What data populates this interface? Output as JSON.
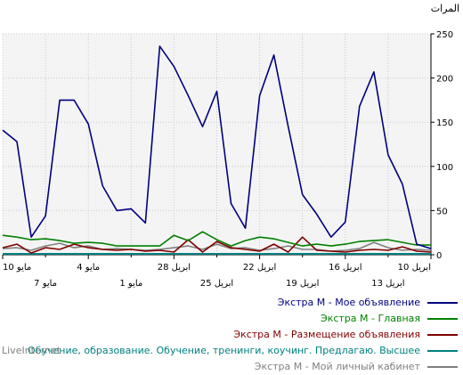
{
  "chart_data": {
    "type": "line",
    "ylabel": "المرات",
    "ylim": [
      0,
      250
    ],
    "yticks": [
      0,
      50,
      100,
      150,
      200,
      250
    ],
    "grid": true,
    "legend_position": "bottom-right",
    "x_tick_labels_row1": [
      "10 مايو",
      "4 مايو",
      "28 ابريل",
      "22 ابريل",
      "16 ابريل",
      "10 ابريل"
    ],
    "x_tick_labels_row2": [
      "7 مايو",
      "1 مايو",
      "25 ابريل",
      "19 ابريل",
      "13 ابريل"
    ],
    "series": [
      {
        "name": "Экстра М - Мое объявление",
        "color": "#000080",
        "values": [
          7,
          12,
          80,
          113,
          207,
          168,
          37,
          20,
          46,
          68,
          145,
          226,
          180,
          30,
          58,
          185,
          145,
          180,
          213,
          236,
          36,
          52,
          50,
          78,
          148,
          175,
          175,
          44,
          20,
          128,
          141
        ]
      },
      {
        "name": "Экстра М - Главная",
        "color": "#008000",
        "values": [
          11,
          11,
          14,
          17,
          16,
          15,
          12,
          10,
          12,
          10,
          14,
          18,
          20,
          16,
          10,
          17,
          26,
          16,
          22,
          10,
          10,
          10,
          10,
          13,
          14,
          13,
          16,
          18,
          17,
          20,
          22
        ]
      },
      {
        "name": "Экстра М - Размещение объявления",
        "color": "#800000",
        "values": [
          3,
          4,
          9,
          5,
          6,
          5,
          3,
          4,
          5,
          20,
          3,
          12,
          4,
          6,
          8,
          15,
          3,
          17,
          3,
          5,
          4,
          6,
          5,
          6,
          8,
          12,
          6,
          8,
          2,
          12,
          8
        ]
      },
      {
        "name": "Обучение, образование. Обучение, тренинги, коучинг. Предлагаю. Высшее",
        "color": "#008080",
        "values": [
          1,
          1,
          1,
          1,
          1,
          1,
          1,
          1,
          1,
          1,
          1,
          1,
          1,
          1,
          1,
          1,
          1,
          1,
          1,
          1,
          1,
          1,
          1,
          1,
          1,
          1,
          1,
          1,
          1,
          1,
          1
        ]
      },
      {
        "name": "Экстра М - Мой личный кабинет",
        "color": "#808080",
        "values": [
          5,
          6,
          5,
          8,
          14,
          7,
          5,
          4,
          6,
          6,
          10,
          7,
          5,
          8,
          7,
          12,
          6,
          10,
          8,
          6,
          5,
          6,
          7,
          6,
          10,
          8,
          13,
          10,
          5,
          8,
          7
        ]
      }
    ]
  },
  "source_label": "LiveInternet"
}
